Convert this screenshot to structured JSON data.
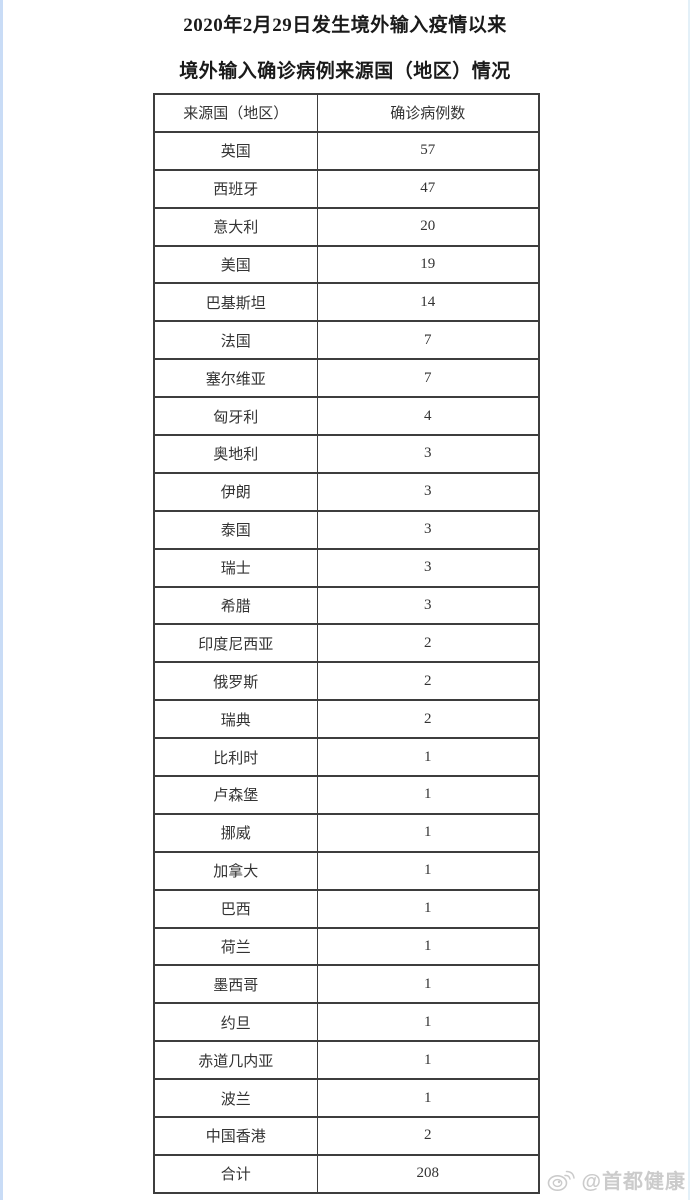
{
  "chart_data": {
    "type": "table",
    "title": "2020年2月29日发生境外输入疫情以来",
    "subtitle": "境外输入确诊病例来源国（地区）情况",
    "columns": [
      "来源国（地区）",
      "确诊病例数"
    ],
    "rows": [
      [
        "英国",
        57
      ],
      [
        "西班牙",
        47
      ],
      [
        "意大利",
        20
      ],
      [
        "美国",
        19
      ],
      [
        "巴基斯坦",
        14
      ],
      [
        "法国",
        7
      ],
      [
        "塞尔维亚",
        7
      ],
      [
        "匈牙利",
        4
      ],
      [
        "奥地利",
        3
      ],
      [
        "伊朗",
        3
      ],
      [
        "泰国",
        3
      ],
      [
        "瑞士",
        3
      ],
      [
        "希腊",
        3
      ],
      [
        "印度尼西亚",
        2
      ],
      [
        "俄罗斯",
        2
      ],
      [
        "瑞典",
        2
      ],
      [
        "比利时",
        1
      ],
      [
        "卢森堡",
        1
      ],
      [
        "挪威",
        1
      ],
      [
        "加拿大",
        1
      ],
      [
        "巴西",
        1
      ],
      [
        "荷兰",
        1
      ],
      [
        "墨西哥",
        1
      ],
      [
        "约旦",
        1
      ],
      [
        "赤道几内亚",
        1
      ],
      [
        "波兰",
        1
      ],
      [
        "中国香港",
        2
      ],
      [
        "合计",
        208
      ]
    ],
    "total_label": "合计",
    "total_value": 208
  },
  "watermark": {
    "handle": "@首都健康",
    "icon": "weibo-icon"
  },
  "colors": {
    "border": "#3d3d3d",
    "text": "#333333",
    "title_text": "#1a1a1a",
    "watermark": "#c9c9c9",
    "left_edge_strip": "#c9dcf6",
    "right_edge_strip": "#e3f0f8",
    "background": "#ffffff"
  }
}
